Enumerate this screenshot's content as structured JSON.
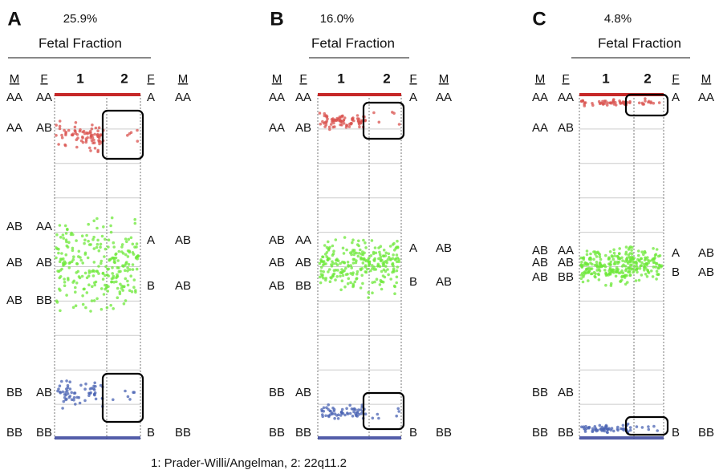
{
  "panels": [
    {
      "label": "A",
      "fraction": "25.9%",
      "subtitle": "Fetal Fraction",
      "header": {
        "m": "M",
        "f": "F",
        "c1": "1",
        "c2": "2",
        "f2": "F",
        "m2": "M"
      },
      "rows": [
        {
          "m": "AA",
          "f": "AA"
        },
        {
          "m": "AA",
          "f": "AB"
        },
        {
          "m": "AB",
          "f": "AA"
        },
        {
          "m": "AB",
          "f": "AB"
        },
        {
          "m": "AB",
          "f": "BB"
        },
        {
          "m": "BB",
          "f": "AB"
        },
        {
          "m": "BB",
          "f": "BB"
        }
      ],
      "right_rows": [
        {
          "f": "A",
          "m": "AA"
        },
        {
          "f": "A",
          "m": "AB"
        },
        {
          "f": "B",
          "m": "AB"
        },
        {
          "f": "B",
          "m": "BB"
        }
      ]
    },
    {
      "label": "B",
      "fraction": "16.0%",
      "subtitle": "Fetal Fraction",
      "header": {
        "m": "M",
        "f": "F",
        "c1": "1",
        "c2": "2",
        "f2": "F",
        "m2": "M"
      },
      "rows": [
        {
          "m": "AA",
          "f": "AA"
        },
        {
          "m": "AA",
          "f": "AB"
        },
        {
          "m": "AB",
          "f": "AA"
        },
        {
          "m": "AB",
          "f": "AB"
        },
        {
          "m": "AB",
          "f": "BB"
        },
        {
          "m": "BB",
          "f": "AB"
        },
        {
          "m": "BB",
          "f": "BB"
        }
      ],
      "right_rows": [
        {
          "f": "A",
          "m": "AA"
        },
        {
          "f": "A",
          "m": "AB"
        },
        {
          "f": "B",
          "m": "AB"
        },
        {
          "f": "B",
          "m": "BB"
        }
      ]
    },
    {
      "label": "C",
      "fraction": "4.8%",
      "subtitle": "Fetal Fraction",
      "header": {
        "m": "M",
        "f": "F",
        "c1": "1",
        "c2": "2",
        "f2": "F",
        "m2": "M"
      },
      "rows": [
        {
          "m": "AA",
          "f": "AA"
        },
        {
          "m": "AA",
          "f": "AB"
        },
        {
          "m": "AB",
          "f": "AA"
        },
        {
          "m": "AB",
          "f": "AB"
        },
        {
          "m": "AB",
          "f": "BB"
        },
        {
          "m": "BB",
          "f": "AB"
        },
        {
          "m": "BB",
          "f": "BB"
        }
      ],
      "right_rows": [
        {
          "f": "A",
          "m": "AA"
        },
        {
          "f": "A",
          "m": "AB"
        },
        {
          "f": "B",
          "m": "AB"
        },
        {
          "f": "B",
          "m": "BB"
        }
      ]
    }
  ],
  "caption": "1: Prader-Willi/Angelman, 2: 22q11.2"
}
